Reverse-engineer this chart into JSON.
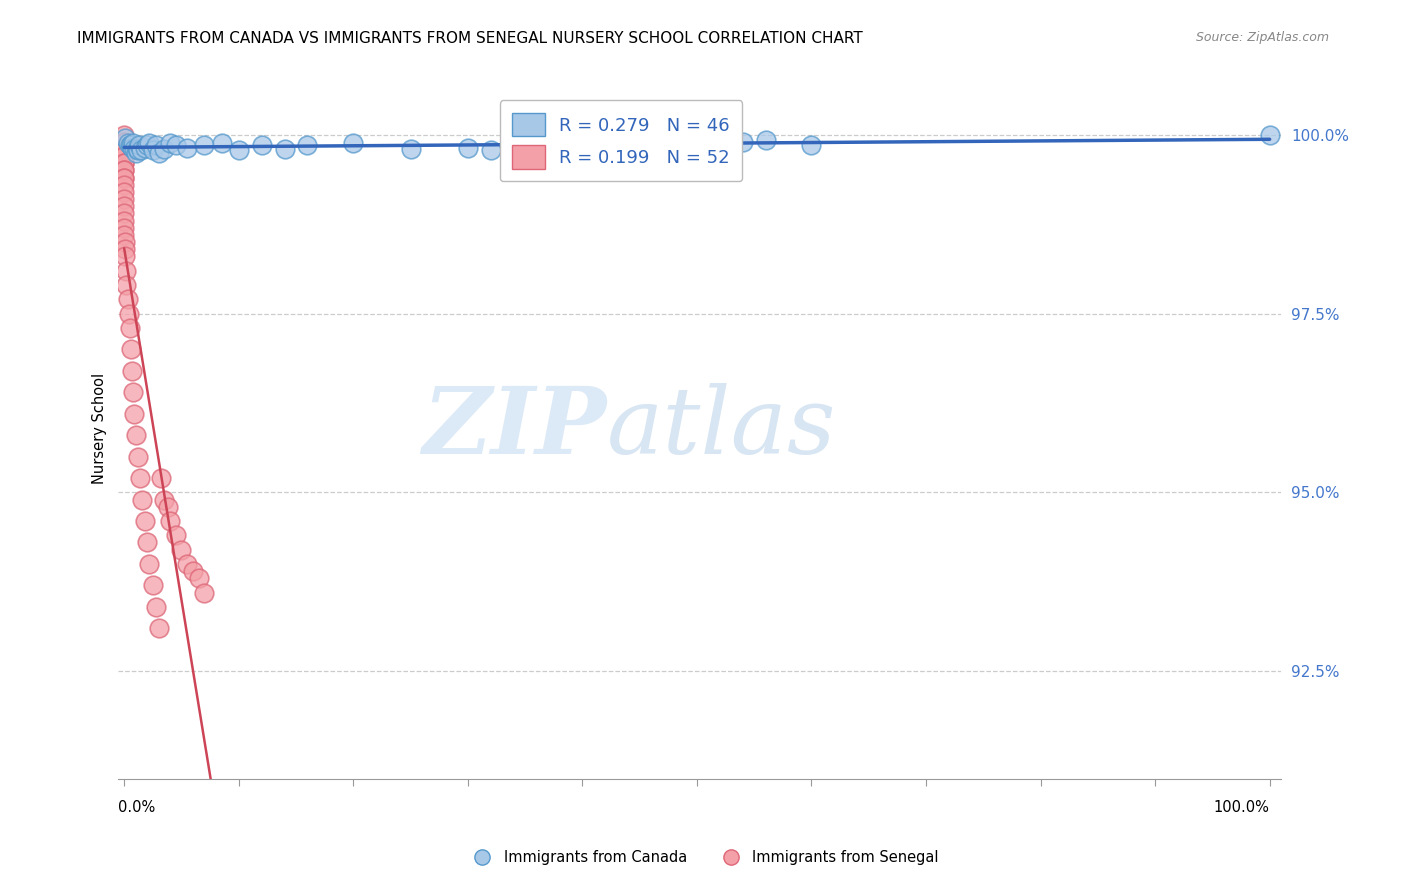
{
  "title": "IMMIGRANTS FROM CANADA VS IMMIGRANTS FROM SENEGAL NURSERY SCHOOL CORRELATION CHART",
  "source": "Source: ZipAtlas.com",
  "ylabel": "Nursery School",
  "canada_color": "#a8c8e8",
  "senegal_color": "#f4a0a8",
  "canada_edge_color": "#5599cc",
  "senegal_edge_color": "#dd6677",
  "trend_canada_color": "#3366bb",
  "trend_senegal_color": "#cc4455",
  "legend_canada_label": "R = 0.279   N = 46",
  "legend_senegal_label": "R = 0.199   N = 52",
  "legend_label_canada": "Immigrants from Canada",
  "legend_label_senegal": "Immigrants from Senegal",
  "watermark_zip": "ZIP",
  "watermark_atlas": "atlas",
  "canada_R": 0.279,
  "canada_N": 46,
  "senegal_R": 0.199,
  "senegal_N": 52,
  "canada_x": [
    0.001,
    0.003,
    0.005,
    0.006,
    0.007,
    0.008,
    0.009,
    0.01,
    0.011,
    0.012,
    0.013,
    0.015,
    0.018,
    0.02,
    0.022,
    0.025,
    0.028,
    0.03,
    0.035,
    0.04,
    0.045,
    0.055,
    0.07,
    0.085,
    0.1,
    0.12,
    0.14,
    0.16,
    0.2,
    0.25,
    0.3,
    0.32,
    0.34,
    0.36,
    0.38,
    0.4,
    0.42,
    0.44,
    0.46,
    0.48,
    0.5,
    0.52,
    0.54,
    0.56,
    0.6,
    1.0
  ],
  "canada_y": [
    0.9995,
    0.9988,
    0.9985,
    0.9985,
    0.9982,
    0.9988,
    0.998,
    0.9975,
    0.998,
    0.9978,
    0.9985,
    0.9978,
    0.9982,
    0.9985,
    0.9988,
    0.9978,
    0.9985,
    0.9975,
    0.998,
    0.9988,
    0.9985,
    0.9982,
    0.9985,
    0.9988,
    0.9978,
    0.9985,
    0.998,
    0.9985,
    0.9988,
    0.998,
    0.9982,
    0.9978,
    0.9975,
    0.9988,
    0.9985,
    0.9988,
    0.9988,
    0.9988,
    0.9985,
    0.999,
    0.9988,
    0.9988,
    0.999,
    0.9992,
    0.9985,
    1.0
  ],
  "senegal_x": [
    0.0,
    0.0,
    0.0,
    0.0,
    0.0,
    0.0,
    0.0,
    0.0,
    0.0,
    0.0,
    0.0,
    0.0,
    0.0,
    0.0,
    0.0,
    0.0,
    0.0,
    0.0,
    0.0,
    0.0,
    0.001,
    0.001,
    0.001,
    0.002,
    0.002,
    0.003,
    0.004,
    0.005,
    0.006,
    0.007,
    0.008,
    0.009,
    0.01,
    0.012,
    0.014,
    0.016,
    0.018,
    0.02,
    0.022,
    0.025,
    0.028,
    0.03,
    0.032,
    0.035,
    0.038,
    0.04,
    0.045,
    0.05,
    0.055,
    0.06,
    0.065,
    0.07
  ],
  "senegal_y": [
    1.0,
    0.999,
    0.998,
    0.998,
    0.997,
    0.997,
    0.996,
    0.996,
    0.995,
    0.995,
    0.994,
    0.994,
    0.993,
    0.992,
    0.991,
    0.99,
    0.989,
    0.988,
    0.987,
    0.986,
    0.985,
    0.984,
    0.983,
    0.981,
    0.979,
    0.977,
    0.975,
    0.973,
    0.97,
    0.967,
    0.964,
    0.961,
    0.958,
    0.955,
    0.952,
    0.949,
    0.946,
    0.943,
    0.94,
    0.937,
    0.934,
    0.931,
    0.952,
    0.949,
    0.948,
    0.946,
    0.944,
    0.942,
    0.94,
    0.939,
    0.938,
    0.936
  ],
  "grid_color": "#cccccc",
  "yticks": [
    1.0,
    0.975,
    0.95,
    0.925
  ],
  "ytick_labels": [
    "100.0%",
    "97.5%",
    "95.0%",
    "92.5%"
  ],
  "xlim": [
    0.0,
    1.0
  ],
  "ylim": [
    0.91,
    1.008
  ]
}
